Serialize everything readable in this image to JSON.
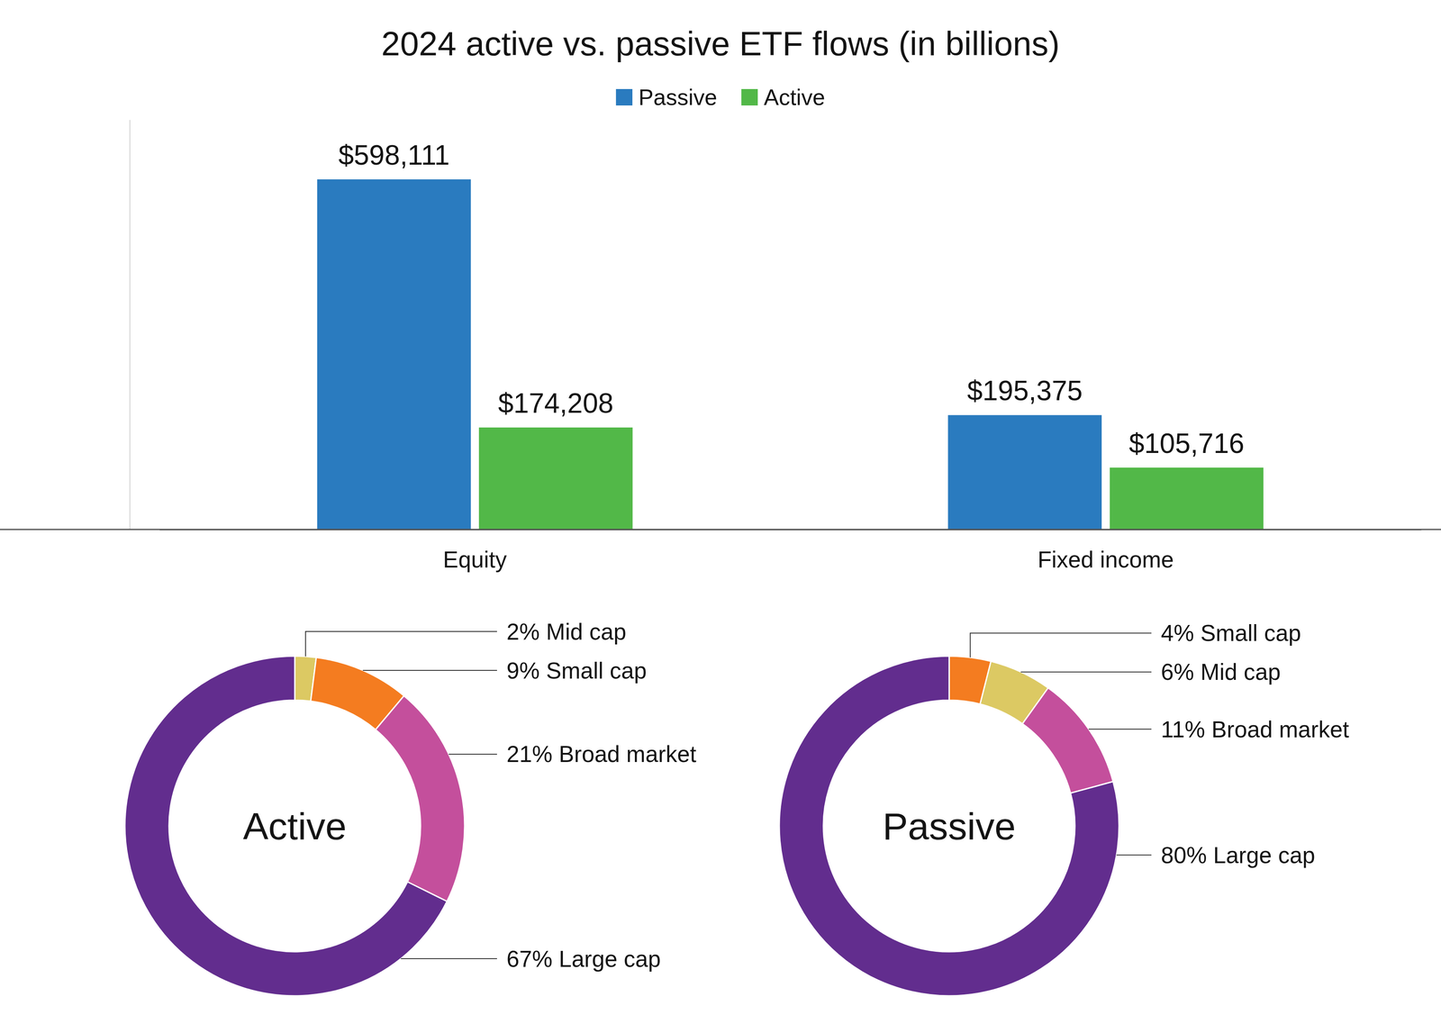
{
  "chart_data": [
    {
      "type": "bar",
      "title": "2024 active vs. passive ETF flows (in billions)",
      "categories": [
        "Equity",
        "Fixed income"
      ],
      "series": [
        {
          "name": "Passive",
          "color": "#2a7bbf",
          "values": [
            598111,
            195375
          ],
          "value_labels": [
            "$598,111",
            "$195,375"
          ]
        },
        {
          "name": "Active",
          "color": "#52b848",
          "values": [
            174208,
            105716
          ],
          "value_labels": [
            "$174,208",
            "$105,716"
          ]
        }
      ],
      "ylim": [
        0,
        700000
      ],
      "data_labels": true,
      "tick_labels": "x",
      "legend": "top"
    },
    {
      "type": "donut",
      "title": "Active",
      "categories": [
        "Mid cap",
        "Small cap",
        "Broad market",
        "Large cap"
      ],
      "values": [
        2,
        9,
        21,
        67
      ],
      "value_labels": [
        "2%",
        "9%",
        "21%",
        "67%"
      ],
      "colors": [
        "#dcc963",
        "#f47c20",
        "#c44f9c",
        "#622d8e"
      ],
      "data_labels": true
    },
    {
      "type": "donut",
      "title": "Passive",
      "categories": [
        "Small cap",
        "Mid cap",
        "Broad market",
        "Large cap"
      ],
      "values": [
        4,
        6,
        11,
        80
      ],
      "value_labels": [
        "4%",
        "6%",
        "11%",
        "80%"
      ],
      "colors": [
        "#f47c20",
        "#dcc963",
        "#c44f9c",
        "#622d8e"
      ],
      "data_labels": true
    }
  ]
}
